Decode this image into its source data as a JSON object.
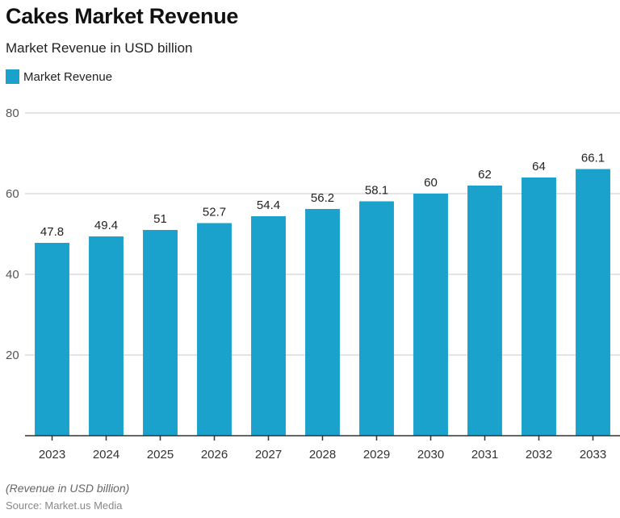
{
  "chart_data": {
    "type": "bar",
    "title": "Cakes Market Revenue",
    "subtitle": "Market Revenue in USD billion",
    "legend": [
      {
        "name": "Market Revenue",
        "color": "#1aa1cc"
      }
    ],
    "legend_position": "top-left",
    "categories": [
      "2023",
      "2024",
      "2025",
      "2026",
      "2027",
      "2028",
      "2029",
      "2030",
      "2031",
      "2032",
      "2033"
    ],
    "series": [
      {
        "name": "Market Revenue",
        "values": [
          47.8,
          49.4,
          51,
          52.7,
          54.4,
          56.2,
          58.1,
          60,
          62,
          64,
          66.1
        ]
      }
    ],
    "data_labels": [
      "47.8",
      "49.4",
      "51",
      "52.7",
      "54.4",
      "56.2",
      "58.1",
      "60",
      "62",
      "64",
      "66.1"
    ],
    "ylim": [
      0,
      80
    ],
    "yticks": [
      20,
      40,
      60,
      80
    ],
    "xlabel": "",
    "ylabel": "",
    "grid": true,
    "note": "(Revenue in USD billion)",
    "source": "Source: Market.us Media"
  }
}
